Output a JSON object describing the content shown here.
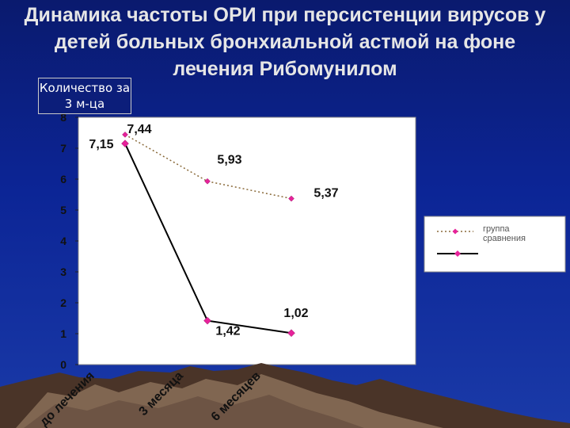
{
  "slide": {
    "title": "Динамика частоты ОРИ при персистенции вирусов  у детей  больных бронхиальной астмой на фоне лечения Рибомунилом"
  },
  "chart_data": {
    "type": "line",
    "ylabel": "Количество за 3 м-ца",
    "ylim": [
      0,
      8
    ],
    "yticks": [
      0,
      1,
      2,
      3,
      4,
      5,
      6,
      7,
      8
    ],
    "categories": [
      "до лечения",
      "3 месяца",
      "6 месяцев"
    ],
    "grid": false,
    "legend_position": "right",
    "series": [
      {
        "name": "группа сравнения",
        "style": "dotted",
        "color": "#8a6a3a",
        "marker_color": "#e6229a",
        "values": [
          7.44,
          5.93,
          5.37
        ],
        "labels": [
          "7,44",
          "5,93",
          "5,37"
        ]
      },
      {
        "name": "",
        "style": "solid",
        "color": "#000000",
        "marker_color": "#e6229a",
        "values": [
          7.15,
          1.42,
          1.02
        ],
        "labels": [
          "7,15",
          "1,42",
          "1,02"
        ]
      }
    ],
    "colors": {
      "plot_background": "#ffffff",
      "plot_border": "#8c8c8c",
      "mountains_dark": "#4a3428",
      "mountains_light": "#8a7058"
    }
  }
}
